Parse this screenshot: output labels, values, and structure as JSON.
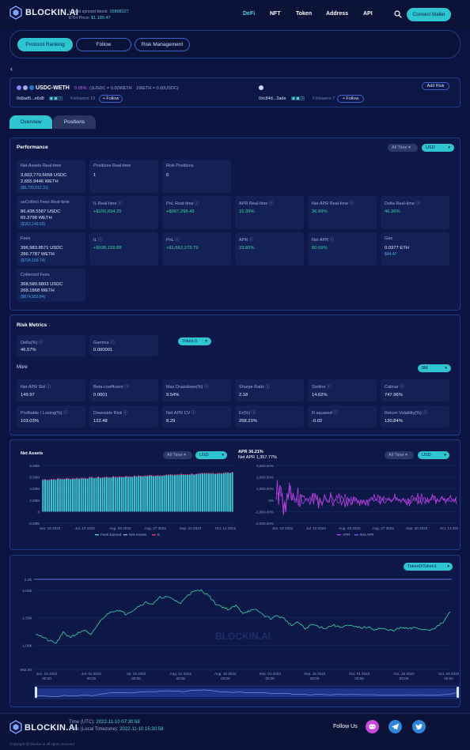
{
  "header": {
    "logo": "BLOCKIN.AI",
    "synced_label": "Latest synced block:",
    "synced_block": "15898127",
    "eth_label": "ETH Price:",
    "eth_price": "$1,180.47",
    "nav": [
      "DeFi",
      "NFT",
      "Token",
      "Address",
      "API"
    ],
    "connect": "Connect Wallet"
  },
  "tabs": [
    "Protocol Ranking",
    "Follow",
    "Risk Management"
  ],
  "pair": {
    "name": "USDC-WETH",
    "fee": "0.05%",
    "rate1": "(1USDC = 0.00WETH",
    "rate2": "1WETH = 0.00USDC)",
    "addr1": "0x8ad5...e6d8",
    "followers1": "Followers  19",
    "addr2": "0xc84d...2ade",
    "followers2": "Followers  7",
    "follow": "+ Follow",
    "add_risk": "Add Risk"
  },
  "subtabs": [
    "Overview",
    "Positions"
  ],
  "performance": {
    "title": "Performance",
    "dd_range": "All Time",
    "dd_unit": "USD",
    "cards": [
      {
        "label": "Net Assets Real-time",
        "lines": [
          "3,603,770.5658 USDC",
          "2,655.9446 WETH"
        ],
        "sub": "($6,720,012.31)"
      },
      {
        "label": "Positions Real-time",
        "lines": [
          "1"
        ]
      },
      {
        "label": "Risk Positions",
        "lines": [
          "0"
        ]
      },
      {
        "label": "unCollect Fees Real-time",
        "lines": [
          "86,438.5587 USDC",
          "65.3798 WETH"
        ],
        "sub": "($163,149.65)"
      },
      {
        "label": "IL Real-time ⓘ",
        "lines": [
          "+$150,694.25"
        ],
        "green": true
      },
      {
        "label": "PnL Real-time ⓘ",
        "lines": [
          "+$997,298.49"
        ],
        "green": true
      },
      {
        "label": "APR Real-time ⓘ",
        "lines": [
          "31.39%"
        ],
        "green": true
      },
      {
        "label": "Net APR Real-time ⓘ",
        "lines": [
          "36.99%"
        ],
        "green": true
      },
      {
        "label": "Delta Real-time ⓘ",
        "lines": [
          "46.36%"
        ],
        "green": true
      },
      {
        "label": "Fees",
        "lines": [
          "396,983.8571 USDC",
          "286.7787 WETH"
        ],
        "sub": "($724,159.74)"
      },
      {
        "label": "IL ⓘ",
        "lines": [
          "+$938,159.88"
        ],
        "green": true
      },
      {
        "label": "PnL ⓘ",
        "lines": [
          "+$1,662,273.79"
        ],
        "green": true
      },
      {
        "label": "APR ⓘ",
        "lines": [
          "33.82%"
        ],
        "green": true
      },
      {
        "label": "Net APR ⓘ",
        "lines": [
          "80.69%"
        ],
        "green": true
      },
      {
        "label": "Gas",
        "lines": [
          "0.0377 ETH"
        ],
        "sub": "$44.47"
      },
      {
        "label": "Collected Fees",
        "lines": [
          "368,589.6803 USDC",
          "268.1868 WETH"
        ],
        "sub": "($674,553.84)"
      }
    ]
  },
  "risk": {
    "title": "Risk Metrics",
    "delta_label": "Delta(%) ⓘ",
    "delta_value": "46.57%",
    "gamma_label": "Gamma ⓘ",
    "gamma_value": "0.000001",
    "token_dd": "Token 0",
    "more": "More",
    "period_dd": "9M",
    "cards": [
      {
        "label": "Net APR Std ⓘ",
        "value": "149.97"
      },
      {
        "label": "Beta-coefficient ⓘ",
        "value": "0.0001"
      },
      {
        "label": "Max Drawdown(%) ⓘ",
        "value": "9.54%"
      },
      {
        "label": "Sharpe Ratio ⓘ",
        "value": "2.18"
      },
      {
        "label": "Sortino ⓘ",
        "value": "14.62%"
      },
      {
        "label": "Calmar ⓘ",
        "value": "747.96%"
      },
      {
        "label": "Profitable / Losing(%) ⓘ",
        "value": "103.03%"
      },
      {
        "label": "Downside Risk ⓘ",
        "value": "122.48"
      },
      {
        "label": "Net APR CV ⓘ",
        "value": "8.29"
      },
      {
        "label": "Er(%) ⓘ",
        "value": "268.23%"
      },
      {
        "label": "R-squared ⓘ",
        "value": "-0.02"
      },
      {
        "label": "Return Volatility(%) ⓘ",
        "value": "130.84%"
      }
    ]
  },
  "charts": {
    "left_title": "Net Assets",
    "left_dd_range": "All Time",
    "left_dd_unit": "USD",
    "right_title": "APR 36.21%",
    "right_sub": "Net APR 1,357.77%",
    "right_dd_range": "All Time",
    "right_dd_unit": "USD",
    "price_dd": "Token0/Token1",
    "watermark": "BLOCKIN.AI"
  },
  "chart_data": [
    {
      "type": "bar",
      "title": "Net Assets",
      "y_ticks": [
        "8.00M",
        "6.00M",
        "4.00M",
        "2.00M",
        "0",
        "-2.00M"
      ],
      "x_ticks": [
        "Jun. 18 2022",
        "Jul. 10 2022",
        "Aug. 03 2022",
        "Aug. 27 2022",
        "Sep. 20 2022",
        "Oct. 14 2022"
      ],
      "ylim": [
        -2000000,
        8000000
      ],
      "series_names": [
        "Fees Earned",
        "Net Assets",
        "IL"
      ],
      "net_assets_start": 5500000,
      "net_assets_end": 6700000
    },
    {
      "type": "line",
      "title": "APR 36.21%",
      "y_ticks": [
        "3,000.00%",
        "2,000.00%",
        "1,000.00%",
        "0%",
        "-1,000.00%",
        "-2,000.00%"
      ],
      "x_ticks": [
        "Jun. 18 2022",
        "Jul. 10 2022",
        "Aug. 03 2022",
        "Aug. 27 2022",
        "Sep. 20 2022",
        "Oct. 14 2022"
      ],
      "ylim": [
        -2000,
        3000
      ],
      "series_names": [
        "APR",
        "Net APR"
      ]
    },
    {
      "type": "line",
      "y_ticks": [
        "2.2k",
        "2.00k",
        "1.50k",
        "1.00k",
        "562.30"
      ],
      "x_ticks": [
        "Jun. 22 2022 00:00",
        "Jul. 01 2022 00:00",
        "Jul. 15 2022 00:00",
        "Aug. 01 2022 00:00",
        "Aug. 15 2022 00:00",
        "Sep. 01 2022 00:00",
        "Sep. 15 2022 00:00",
        "Oct. 01 2022 00:00",
        "Oct. 15 2022 00:00",
        "Oct. 29 2022 00:00"
      ],
      "ylim": [
        562.3,
        2200
      ],
      "series": [
        {
          "values": [
            1220,
            1150,
            1080,
            1040,
            1230,
            1150,
            1210,
            1280,
            1180,
            1380,
            1530,
            1620,
            1640,
            1570,
            1630,
            1720,
            1780,
            1750,
            1870,
            1880,
            1830,
            1760,
            1920,
            1980,
            2000,
            1910,
            1760,
            1700,
            1650,
            1720,
            1590,
            1630,
            1640,
            1550,
            1490,
            1540,
            1480,
            1360,
            1420,
            1300,
            1380,
            1340,
            1310,
            1370,
            1330,
            1360,
            1340,
            1320,
            1330,
            1290,
            1310,
            1270,
            1280,
            1320,
            1300,
            1320,
            1290,
            1280,
            1330,
            1420,
            1610
          ]
        }
      ]
    }
  ],
  "footer": {
    "logo": "BLOCKIN.AI",
    "utc_label": "Time (UTC):",
    "utc_value": "2022-11-10 07:30:58",
    "local_label": "Time (Local Timezone):",
    "local_value": "2022-11-10 15:30:58",
    "follow_us": "Follow Us",
    "copyright": "Copyright @ blockin.ai all rights reserved",
    "colors": {
      "discord": "#c74bd9",
      "telegram": "#2f86d8",
      "twitter": "#2f86d8"
    }
  }
}
